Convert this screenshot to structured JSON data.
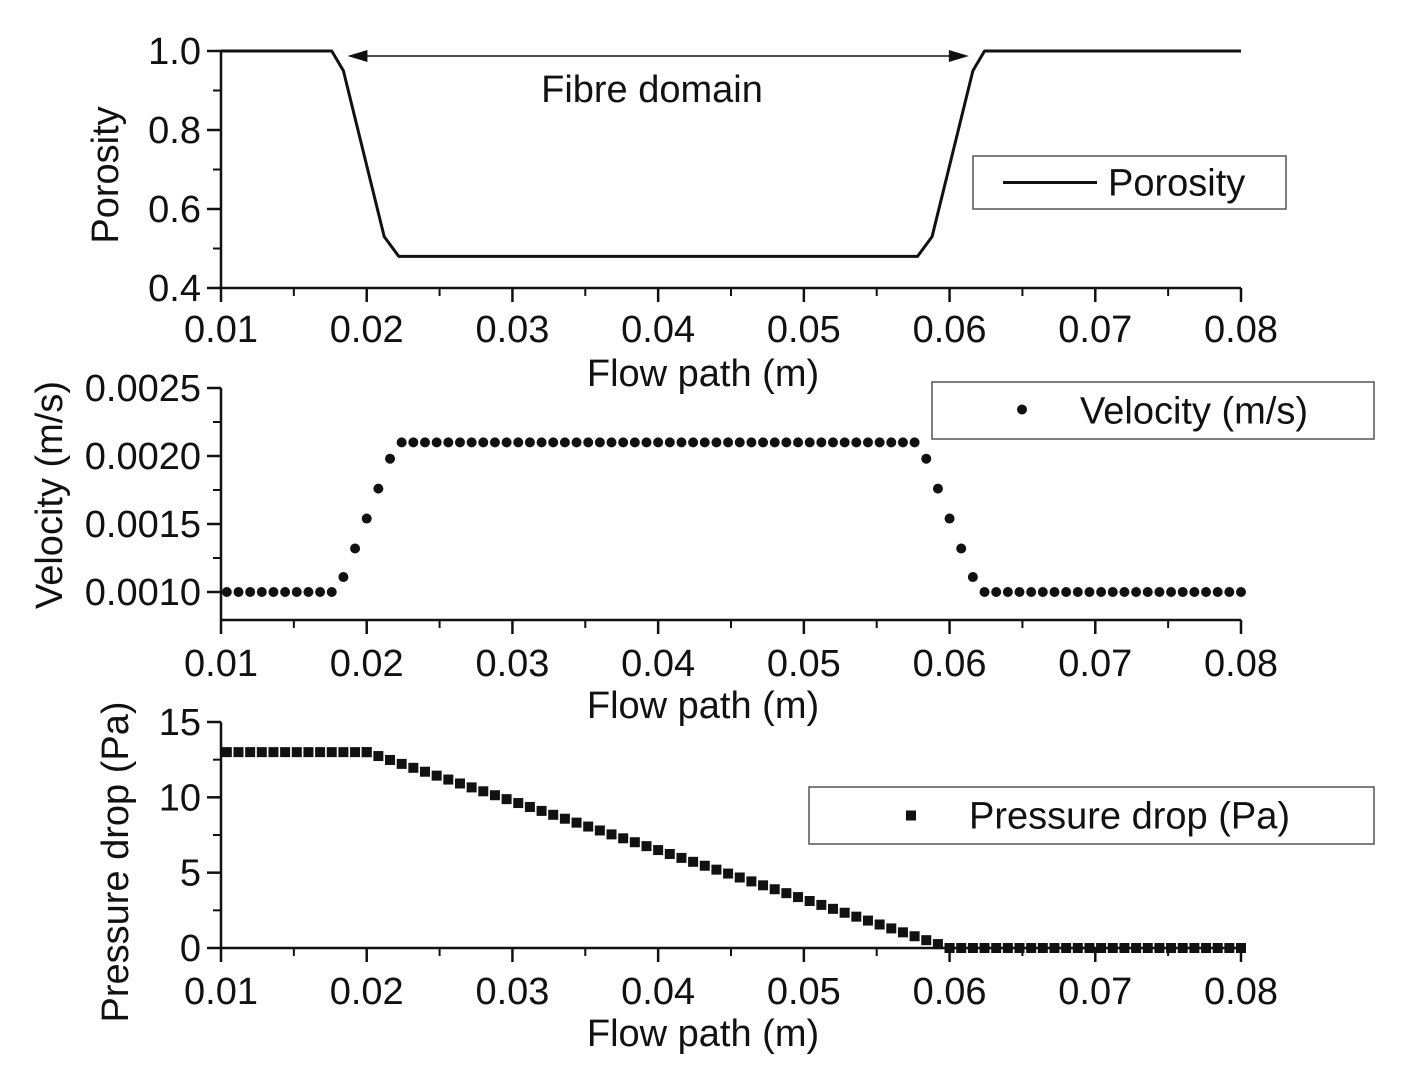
{
  "chart_data": [
    {
      "type": "line",
      "title": "",
      "xlabel": "Flow path (m)",
      "ylabel": "Porosity",
      "xlim": [
        0.01,
        0.08
      ],
      "ylim": [
        0.4,
        1.0
      ],
      "x_ticks": [
        "0.01",
        "0.02",
        "0.03",
        "0.04",
        "0.05",
        "0.06",
        "0.07",
        "0.08"
      ],
      "y_ticks": [
        "0.4",
        "0.6",
        "0.8",
        "1.0"
      ],
      "legend": [
        "Porosity"
      ],
      "legend_position": "right",
      "annotation": "Fibre domain",
      "annotation_arrow": [
        0.0195,
        0.0605
      ],
      "series": [
        {
          "name": "Porosity",
          "x": [
            0.01,
            0.0176,
            0.0184,
            0.0212,
            0.0222,
            0.0578,
            0.0588,
            0.0616,
            0.0624,
            0.08
          ],
          "values": [
            1.0,
            1.0,
            0.95,
            0.53,
            0.48,
            0.48,
            0.53,
            0.95,
            1.0,
            1.0
          ]
        }
      ]
    },
    {
      "type": "scatter",
      "title": "",
      "xlabel": "Flow path (m)",
      "ylabel": "Velocity (m/s)",
      "xlim": [
        0.01,
        0.08
      ],
      "ylim": [
        0.0008,
        0.0025
      ],
      "x_ticks": [
        "0.01",
        "0.02",
        "0.03",
        "0.04",
        "0.05",
        "0.06",
        "0.07",
        "0.08"
      ],
      "y_ticks": [
        "0.0010",
        "0.0015",
        "0.0020",
        "0.0025"
      ],
      "legend": [
        "Velocity (m/s)"
      ],
      "legend_position": "upper right",
      "series": [
        {
          "name": "Velocity (m/s)",
          "marker": "circle",
          "segments": [
            {
              "x_from": 0.0104,
              "x_to": 0.0176,
              "step": 0.0008,
              "value": 0.001
            },
            {
              "x": [
                0.0184,
                0.0192,
                0.02,
                0.0208,
                0.0216
              ],
              "values": [
                0.00111,
                0.00132,
                0.00154,
                0.00176,
                0.00198
              ]
            },
            {
              "x_from": 0.0224,
              "x_to": 0.0576,
              "step": 0.0008,
              "value": 0.0021
            },
            {
              "x": [
                0.0584,
                0.0592,
                0.06,
                0.0608,
                0.0616
              ],
              "values": [
                0.00198,
                0.00176,
                0.00154,
                0.00132,
                0.00111
              ]
            },
            {
              "x_from": 0.0624,
              "x_to": 0.08,
              "step": 0.0008,
              "value": 0.001
            }
          ]
        }
      ]
    },
    {
      "type": "scatter",
      "title": "",
      "xlabel": "Flow path (m)",
      "ylabel": "Pressure drop (Pa)",
      "xlim": [
        0.01,
        0.08
      ],
      "ylim": [
        0,
        15
      ],
      "x_ticks": [
        "0.01",
        "0.02",
        "0.03",
        "0.04",
        "0.05",
        "0.06",
        "0.07",
        "0.08"
      ],
      "y_ticks": [
        "0",
        "5",
        "10",
        "15"
      ],
      "legend": [
        "Pressure drop (Pa)"
      ],
      "legend_position": "right",
      "series": [
        {
          "name": "Pressure drop (Pa)",
          "marker": "square",
          "segments": [
            {
              "x_from": 0.0104,
              "x_to": 0.02,
              "step": 0.0008,
              "value": 13.0
            },
            {
              "x_from": 0.02,
              "x_to": 0.06,
              "step": 0.0008,
              "value_from": 13.0,
              "value_to": 0.0
            },
            {
              "x_from": 0.06,
              "x_to": 0.08,
              "step": 0.0008,
              "value": 0.0
            }
          ]
        }
      ]
    }
  ]
}
